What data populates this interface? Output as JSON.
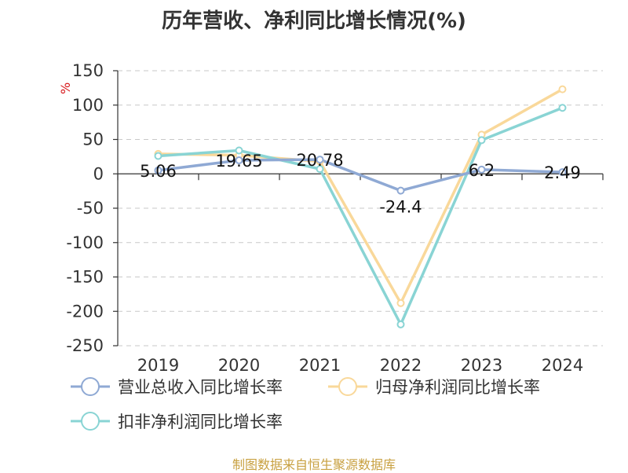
{
  "chart_data": {
    "type": "line",
    "title": "历年营收、净利同比增长情况(%)",
    "unit_label": "%",
    "categories": [
      "2019",
      "2020",
      "2021",
      "2022",
      "2023",
      "2024"
    ],
    "ylim": [
      -250,
      150
    ],
    "y_ticks": [
      "150",
      "100",
      "50",
      "0",
      "-50",
      "-100",
      "-150",
      "-200",
      "-250"
    ],
    "grid": true,
    "legend_position": "bottom",
    "series": [
      {
        "name": "营业总收入同比增长率",
        "color": "#8fa9d4",
        "values": [
          5.06,
          19.65,
          20.78,
          -24.4,
          6.2,
          2.49
        ],
        "data_labels": [
          "5.06",
          "19.65",
          "20.78",
          "-24.4",
          "6.2",
          "2.49"
        ]
      },
      {
        "name": "归母净利润同比增长率",
        "color": "#f9d89a",
        "values": [
          29,
          27,
          18,
          -188,
          57,
          123
        ]
      },
      {
        "name": "扣非净利润同比增长率",
        "color": "#89d4d4",
        "values": [
          26,
          34,
          7,
          -219,
          49,
          96
        ]
      }
    ],
    "source": "制图数据来自恒生聚源数据库"
  }
}
